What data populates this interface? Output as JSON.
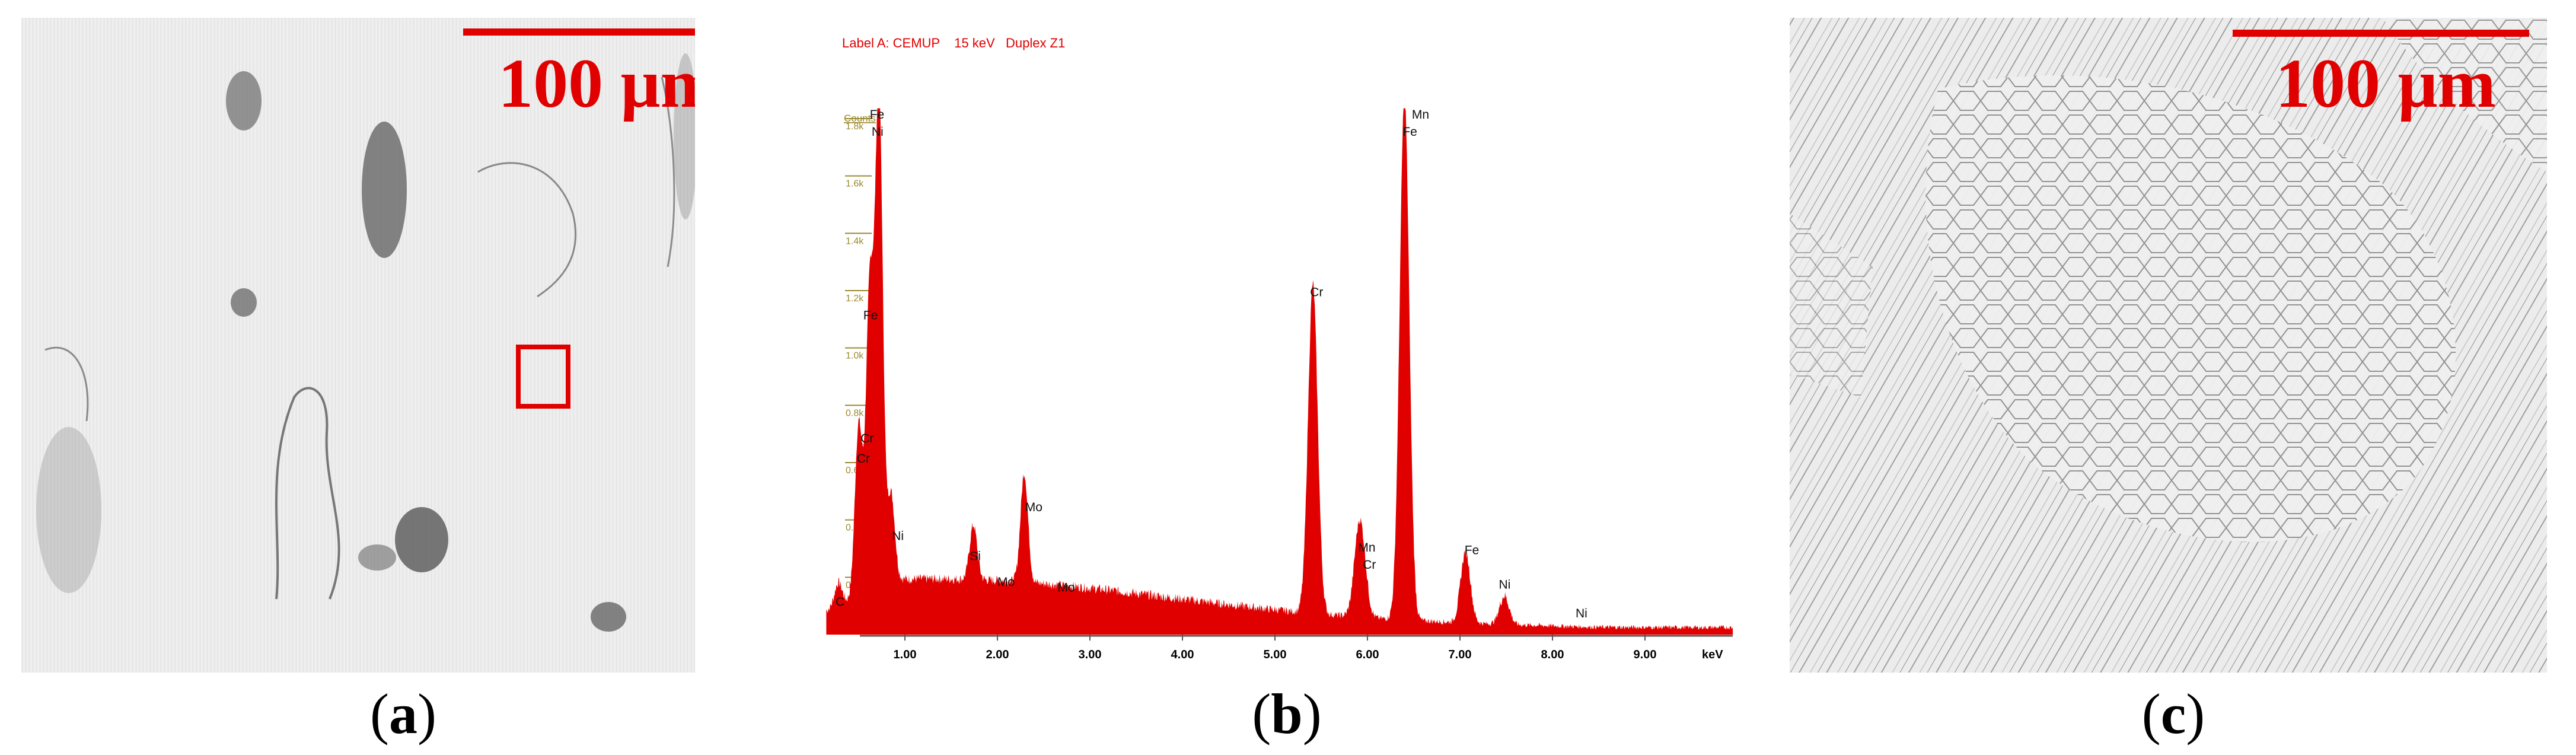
{
  "panels": {
    "a": {
      "caption_letter": "a",
      "scale_label": "100 μm"
    },
    "b": {
      "caption_letter": "b"
    },
    "c": {
      "caption_letter": "c",
      "scale_label": "100 μm"
    }
  },
  "colors": {
    "accent": "#e00000",
    "axis_tick": "#9a8a30"
  },
  "chart_data": {
    "type": "area",
    "title": "Label A: CEMUP    15 keV   Duplex Z1",
    "ylabel": "Counts",
    "xlabel": "keV",
    "xlim": [
      0,
      10.0
    ],
    "ylim": [
      0,
      1.8
    ],
    "x_ticks": [
      1.0,
      2.0,
      3.0,
      4.0,
      5.0,
      6.0,
      7.0,
      8.0,
      9.0
    ],
    "x_tick_labels": [
      "1.00",
      "2.00",
      "3.00",
      "4.00",
      "5.00",
      "6.00",
      "7.00",
      "8.00",
      "9.00"
    ],
    "y_ticks": [
      0.2,
      0.4,
      0.6,
      0.8,
      1.0,
      1.2,
      1.4,
      1.6,
      1.8
    ],
    "y_tick_labels": [
      "0.2k",
      "0.4k",
      "0.6k",
      "0.8k",
      "1.0k",
      "1.2k",
      "1.4k",
      "1.6k",
      "1.8k"
    ],
    "peaks": [
      {
        "label": "C",
        "energy": 0.28,
        "height": 0.08
      },
      {
        "label": "Cr",
        "energy": 0.5,
        "height": 0.6
      },
      {
        "label": "Fe",
        "energy": 0.62,
        "height": 1.05
      },
      {
        "label": "Ni",
        "energy": 0.72,
        "height": 1.73
      },
      {
        "label": "Ni",
        "energy": 0.85,
        "height": 0.3
      },
      {
        "label": "Si",
        "energy": 1.74,
        "height": 0.19
      },
      {
        "label": "Mo",
        "energy": 2.29,
        "height": 0.38
      },
      {
        "label": "Cr",
        "energy": 5.41,
        "height": 1.15
      },
      {
        "label": "Cr",
        "energy": 5.95,
        "height": 0.15
      },
      {
        "label": "Mn",
        "energy": 5.9,
        "height": 0.23
      },
      {
        "label": "Fe",
        "energy": 6.4,
        "height": 1.83
      },
      {
        "label": "Fe",
        "energy": 7.06,
        "height": 0.25
      },
      {
        "label": "Ni",
        "energy": 7.48,
        "height": 0.1
      }
    ],
    "annotations": [
      {
        "text": "Fe",
        "x": 0.62,
        "y": 1.8
      },
      {
        "text": "Ni",
        "x": 0.64,
        "y": 1.74
      },
      {
        "text": "Fe",
        "x": 0.55,
        "y": 1.1
      },
      {
        "text": "Cr",
        "x": 0.52,
        "y": 0.67
      },
      {
        "text": "Cr",
        "x": 0.48,
        "y": 0.6
      },
      {
        "text": "C",
        "x": 0.25,
        "y": 0.1
      },
      {
        "text": "Ni",
        "x": 0.86,
        "y": 0.33
      },
      {
        "text": "Si",
        "x": 1.7,
        "y": 0.26
      },
      {
        "text": "Mo",
        "x": 2.0,
        "y": 0.17
      },
      {
        "text": "Mo",
        "x": 2.3,
        "y": 0.43
      },
      {
        "text": "Mo",
        "x": 2.65,
        "y": 0.15
      },
      {
        "text": "Cr",
        "x": 5.38,
        "y": 1.18
      },
      {
        "text": "Mn",
        "x": 5.9,
        "y": 0.29
      },
      {
        "text": "Cr",
        "x": 5.95,
        "y": 0.23
      },
      {
        "text": "Mn",
        "x": 6.48,
        "y": 1.8
      },
      {
        "text": "Fe",
        "x": 6.38,
        "y": 1.74
      },
      {
        "text": "Fe",
        "x": 7.05,
        "y": 0.28
      },
      {
        "text": "Ni",
        "x": 7.42,
        "y": 0.16
      },
      {
        "text": "Ni",
        "x": 8.25,
        "y": 0.06
      }
    ]
  }
}
